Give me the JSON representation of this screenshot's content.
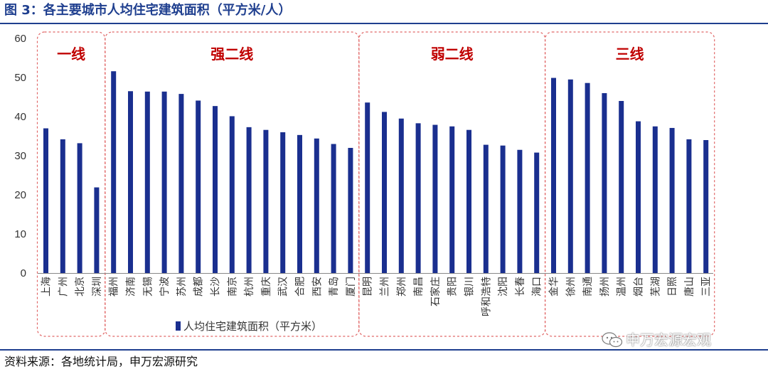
{
  "header": {
    "title": "图 3：各主要城市人均住宅建筑面积（平方米/人）"
  },
  "footer": {
    "source": "资料来源：各地统计局，申万宏源研究",
    "watermark": "申万宏源宏观"
  },
  "colors": {
    "bar": "#1a2f8f",
    "title": "#1f3f8f",
    "group_label": "#c00000",
    "group_box": "#e06666"
  },
  "chart_data": {
    "type": "bar",
    "title": "",
    "xlabel": "",
    "ylabel": "",
    "ylim": [
      0,
      60
    ],
    "yticks": [
      0,
      10,
      20,
      30,
      40,
      50,
      60
    ],
    "grid": false,
    "legend": {
      "position": "bottom-center",
      "entries": [
        "人均住宅建筑面积（平方米）"
      ]
    },
    "categories": [
      "上海",
      "广州",
      "北京",
      "深圳",
      "福州",
      "济南",
      "无锡",
      "宁波",
      "苏州",
      "成都",
      "长沙",
      "南京",
      "杭州",
      "重庆",
      "武汉",
      "合肥",
      "西安",
      "青岛",
      "厦门",
      "昆明",
      "兰州",
      "郑州",
      "南昌",
      "石家庄",
      "贵阳",
      "银川",
      "呼和浩特",
      "沈阳",
      "长春",
      "海口",
      "金华",
      "徐州",
      "南通",
      "扬州",
      "温州",
      "烟台",
      "芜湖",
      "日照",
      "唐山",
      "三亚"
    ],
    "series": [
      {
        "name": "人均住宅建筑面积（平方米）",
        "values": [
          37.0,
          34.2,
          33.2,
          21.9,
          51.6,
          46.5,
          46.4,
          46.4,
          45.8,
          44.1,
          42.7,
          40.1,
          37.3,
          36.6,
          36.0,
          35.3,
          34.4,
          33.0,
          32.0,
          43.6,
          41.2,
          39.5,
          38.3,
          37.9,
          37.5,
          36.6,
          32.8,
          32.6,
          31.5,
          30.8,
          49.9,
          49.5,
          48.6,
          46.0,
          44.0,
          38.8,
          37.5,
          37.1,
          34.2,
          34.0
        ]
      }
    ],
    "groups": [
      {
        "label": "一线",
        "start": 0,
        "end": 3
      },
      {
        "label": "强二线",
        "start": 4,
        "end": 18
      },
      {
        "label": "弱二线",
        "start": 19,
        "end": 29
      },
      {
        "label": "三线",
        "start": 30,
        "end": 39
      }
    ]
  }
}
